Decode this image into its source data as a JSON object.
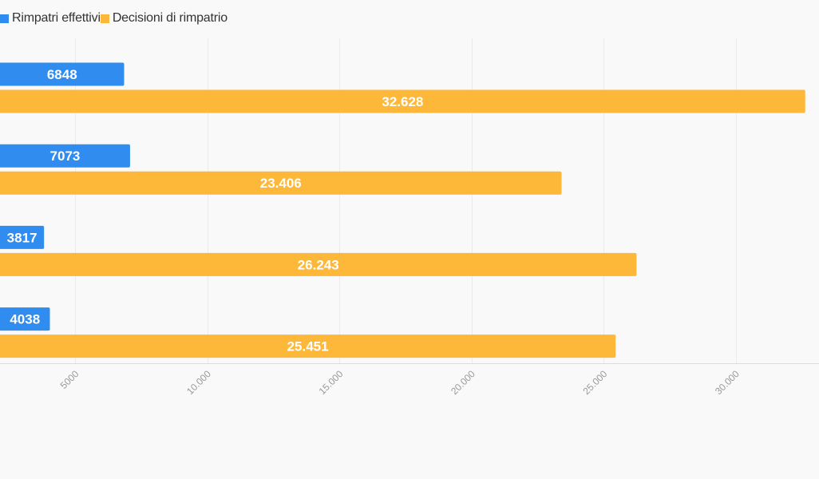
{
  "chart_data": {
    "type": "bar",
    "orientation": "horizontal",
    "categories": [
      "",
      "",
      "",
      ""
    ],
    "series": [
      {
        "name": "Rimpatri effettivi",
        "color": "#318cf0",
        "values": [
          6848,
          7073,
          3817,
          4038
        ],
        "labels": [
          "6848",
          "7073",
          "3817",
          "4038"
        ]
      },
      {
        "name": "Decisioni di rimpatrio",
        "color": "#fdb83a",
        "values": [
          32628,
          23406,
          26243,
          25451
        ],
        "labels": [
          "32.628",
          "23.406",
          "26.243",
          "25.451"
        ]
      }
    ],
    "xticks": [
      {
        "value": 5000,
        "label": "5000"
      },
      {
        "value": 10000,
        "label": "10.000"
      },
      {
        "value": 15000,
        "label": "15.000"
      },
      {
        "value": 20000,
        "label": "20.000"
      },
      {
        "value": 25000,
        "label": "25.000"
      },
      {
        "value": 30000,
        "label": "30.000"
      }
    ],
    "xlim": [
      2150,
      33150
    ],
    "grid": true,
    "legend_position": "top-left",
    "title": "",
    "xlabel": "",
    "ylabel": ""
  }
}
